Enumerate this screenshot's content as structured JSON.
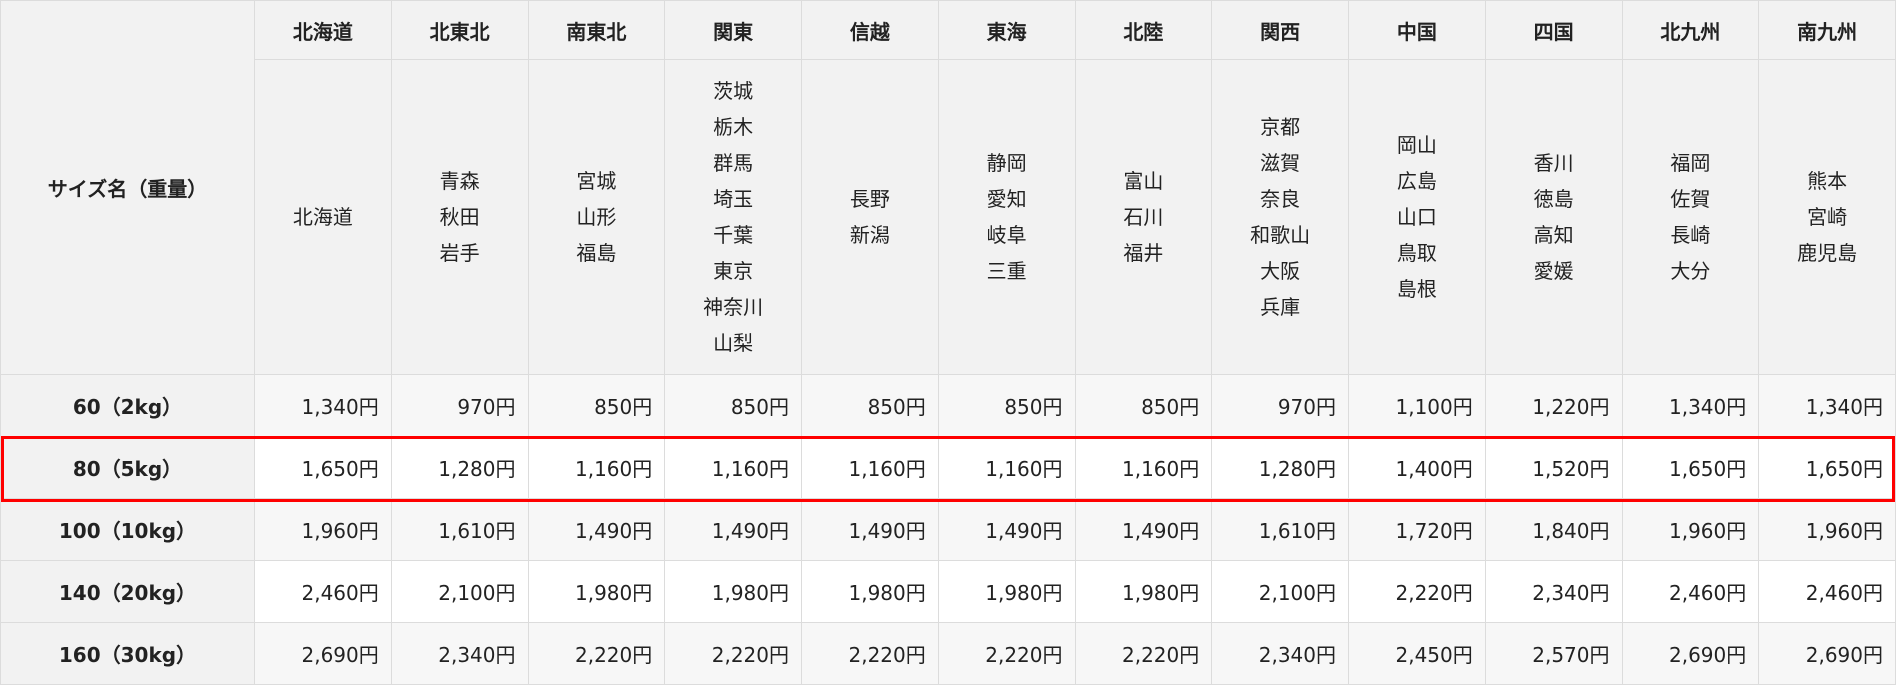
{
  "table": {
    "corner_label": "サイズ名（重量）",
    "regions": [
      {
        "name": "北海道",
        "prefectures": [
          "北海道"
        ]
      },
      {
        "name": "北東北",
        "prefectures": [
          "青森",
          "秋田",
          "岩手"
        ]
      },
      {
        "name": "南東北",
        "prefectures": [
          "宮城",
          "山形",
          "福島"
        ]
      },
      {
        "name": "関東",
        "prefectures": [
          "茨城",
          "栃木",
          "群馬",
          "埼玉",
          "千葉",
          "東京",
          "神奈川",
          "山梨"
        ]
      },
      {
        "name": "信越",
        "prefectures": [
          "長野",
          "新潟"
        ]
      },
      {
        "name": "東海",
        "prefectures": [
          "静岡",
          "愛知",
          "岐阜",
          "三重"
        ]
      },
      {
        "name": "北陸",
        "prefectures": [
          "富山",
          "石川",
          "福井"
        ]
      },
      {
        "name": "関西",
        "prefectures": [
          "京都",
          "滋賀",
          "奈良",
          "和歌山",
          "大阪",
          "兵庫"
        ]
      },
      {
        "name": "中国",
        "prefectures": [
          "岡山",
          "広島",
          "山口",
          "鳥取",
          "島根"
        ]
      },
      {
        "name": "四国",
        "prefectures": [
          "香川",
          "徳島",
          "高知",
          "愛媛"
        ]
      },
      {
        "name": "北九州",
        "prefectures": [
          "福岡",
          "佐賀",
          "長崎",
          "大分"
        ]
      },
      {
        "name": "南九州",
        "prefectures": [
          "熊本",
          "宮崎",
          "鹿児島"
        ]
      }
    ],
    "rows": [
      {
        "size": "60（2kg）",
        "prices": [
          "1,340円",
          "970円",
          "850円",
          "850円",
          "850円",
          "850円",
          "850円",
          "970円",
          "1,100円",
          "1,220円",
          "1,340円",
          "1,340円"
        ]
      },
      {
        "size": "80（5kg）",
        "highlighted": true,
        "prices": [
          "1,650円",
          "1,280円",
          "1,160円",
          "1,160円",
          "1,160円",
          "1,160円",
          "1,160円",
          "1,280円",
          "1,400円",
          "1,520円",
          "1,650円",
          "1,650円"
        ]
      },
      {
        "size": "100（10kg）",
        "prices": [
          "1,960円",
          "1,610円",
          "1,490円",
          "1,490円",
          "1,490円",
          "1,490円",
          "1,490円",
          "1,610円",
          "1,720円",
          "1,840円",
          "1,960円",
          "1,960円"
        ]
      },
      {
        "size": "140（20kg）",
        "prices": [
          "2,460円",
          "2,100円",
          "1,980円",
          "1,980円",
          "1,980円",
          "1,980円",
          "1,980円",
          "2,100円",
          "2,220円",
          "2,340円",
          "2,460円",
          "2,460円"
        ]
      },
      {
        "size": "160（30kg）",
        "prices": [
          "2,690円",
          "2,340円",
          "2,220円",
          "2,220円",
          "2,220円",
          "2,220円",
          "2,220円",
          "2,340円",
          "2,450円",
          "2,570円",
          "2,690円",
          "2,690円"
        ]
      }
    ],
    "highlight_color": "#ff0000"
  }
}
